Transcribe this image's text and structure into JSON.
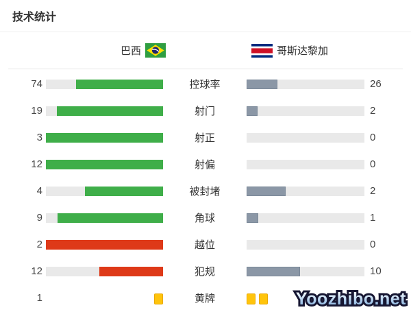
{
  "title": "技术统计",
  "header": {
    "home_team": "巴西",
    "away_team": "哥斯达黎加",
    "home_flag": "brazil-flag",
    "away_flag": "costa-rica-flag"
  },
  "watermark": "Yoozhibo.net",
  "colors": {
    "home_green": "#3fae49",
    "home_red": "#de3918",
    "away_gray": "#8b97a6",
    "track": "#e9e9e9",
    "yellow_card": "#ffc40c"
  },
  "chart_data": {
    "type": "bar",
    "orientation": "horizontal-opposed",
    "home_team": "巴西",
    "away_team": "哥斯达黎加",
    "legend_position": "top",
    "rows": [
      {
        "label": "控球率",
        "home": 74,
        "away": 26,
        "home_color": "green"
      },
      {
        "label": "射门",
        "home": 19,
        "away": 2,
        "home_color": "green"
      },
      {
        "label": "射正",
        "home": 3,
        "away": 0,
        "home_color": "green"
      },
      {
        "label": "射偏",
        "home": 12,
        "away": 0,
        "home_color": "green"
      },
      {
        "label": "被封堵",
        "home": 4,
        "away": 2,
        "home_color": "green"
      },
      {
        "label": "角球",
        "home": 9,
        "away": 1,
        "home_color": "green"
      },
      {
        "label": "越位",
        "home": 2,
        "away": 0,
        "home_color": "red"
      },
      {
        "label": "犯规",
        "home": 12,
        "away": 10,
        "home_color": "red"
      },
      {
        "label": "黄牌",
        "home": 1,
        "away": 2,
        "display": "cards",
        "away_text": ""
      }
    ]
  }
}
